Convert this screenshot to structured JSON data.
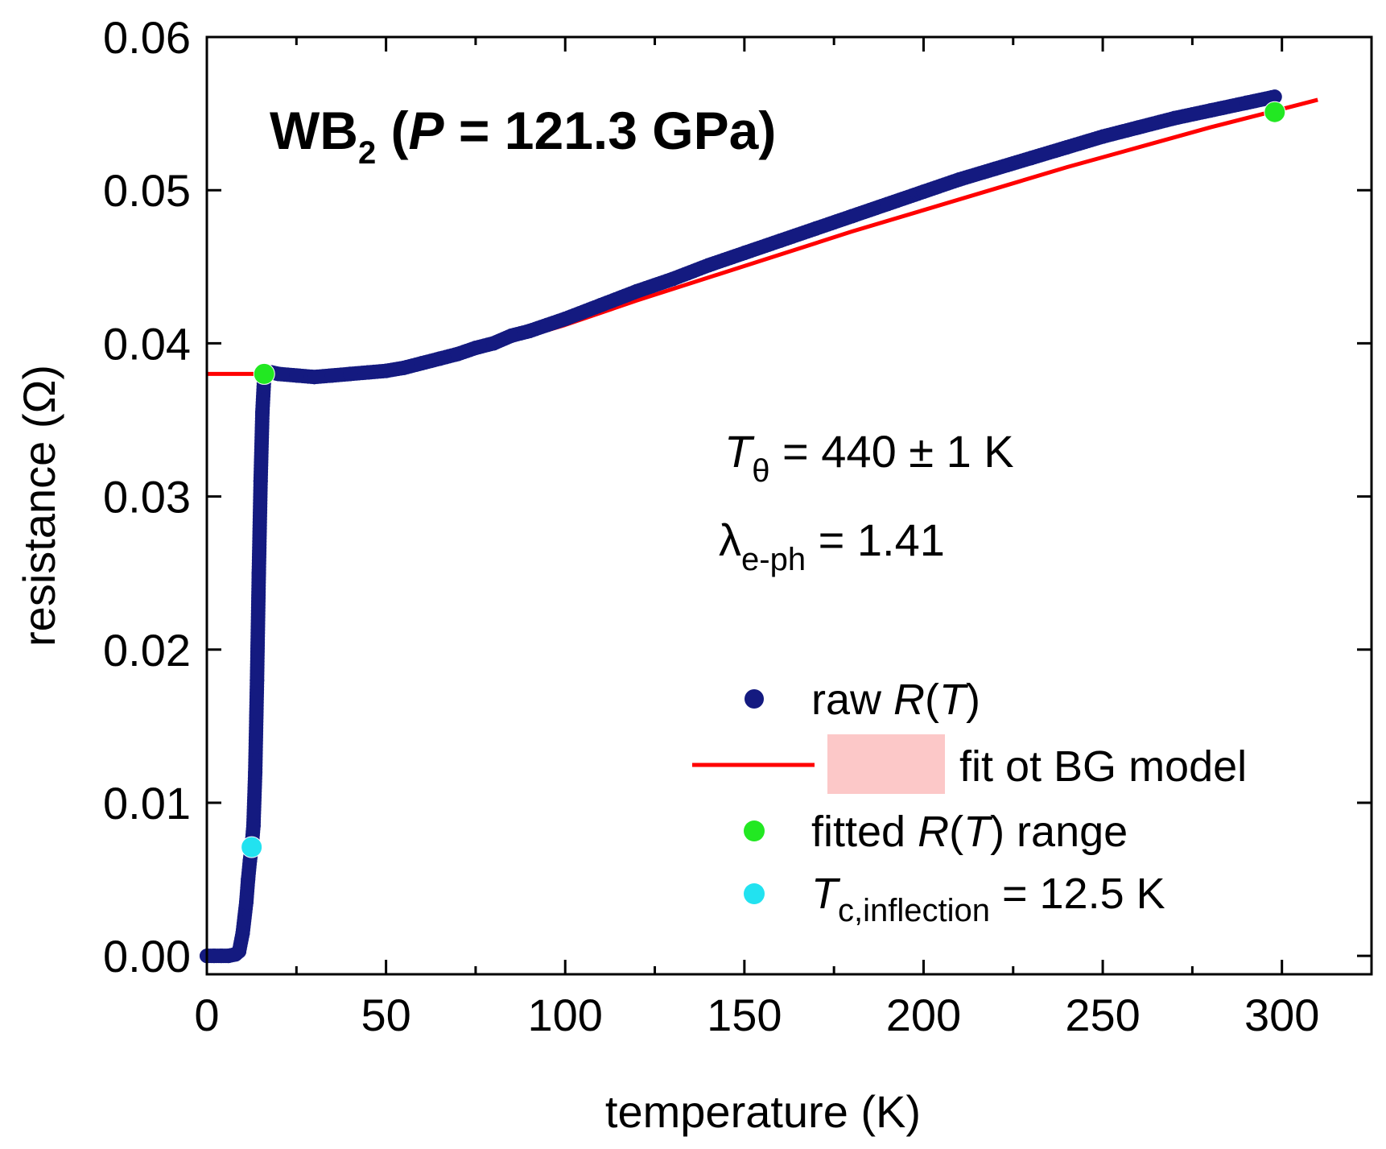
{
  "chart_data": {
    "type": "scatter",
    "title": {
      "main": "WB",
      "sub": "2",
      "open": " (",
      "pvar": "P",
      "rest": " = 121.3 GPa)"
    },
    "xlabel": "temperature (K)",
    "ylabel": "resistance (Ω)",
    "xlim": [
      0,
      325
    ],
    "ylim": [
      -0.0012,
      0.06
    ],
    "xticks": [
      0,
      50,
      100,
      150,
      200,
      250,
      300
    ],
    "yticks": [
      0.0,
      0.01,
      0.02,
      0.03,
      0.04,
      0.05,
      0.06
    ],
    "xtick_labels": [
      "0",
      "50",
      "100",
      "150",
      "200",
      "250",
      "300"
    ],
    "ytick_labels": [
      "0.00",
      "0.01",
      "0.02",
      "0.03",
      "0.04",
      "0.05",
      "0.06"
    ],
    "annotations": {
      "ttheta_sym": "T",
      "ttheta_sub": "θ",
      "ttheta_val": " = 440 ± 1 K",
      "lambda_sym": "λ",
      "lambda_sub": "e-ph",
      "lambda_val": " = 1.41"
    },
    "legend": {
      "position": "bottom-right",
      "raw": {
        "pre": "raw ",
        "r": "R",
        "open": "(",
        "t": "T",
        "close": ")"
      },
      "fit": {
        "text": "fit ot BG model"
      },
      "range": {
        "pre": "fitted ",
        "r": "R",
        "open": "(",
        "t": "T",
        "close": ") range"
      },
      "tc": {
        "t": "T",
        "sub": "c,inflection",
        "val": " = 12.5 K"
      }
    },
    "series": [
      {
        "name": "raw R(T)",
        "kind": "scatter",
        "color": "#141a80",
        "x": [
          0,
          2,
          4,
          6,
          8,
          9,
          10,
          11,
          11.5,
          12,
          12.5,
          13,
          13.5,
          14,
          14.5,
          15,
          15.5,
          16,
          18,
          20,
          25,
          30,
          35,
          40,
          45,
          50,
          55,
          60,
          65,
          70,
          75,
          80,
          85,
          90,
          95,
          100,
          110,
          120,
          130,
          140,
          150,
          160,
          170,
          180,
          190,
          200,
          210,
          220,
          230,
          240,
          250,
          260,
          270,
          280,
          290,
          298
        ],
        "y": [
          0.0,
          0.0,
          0.0,
          0.0,
          0.0001,
          0.0003,
          0.0015,
          0.0035,
          0.005,
          0.0062,
          0.0071,
          0.0085,
          0.012,
          0.018,
          0.025,
          0.031,
          0.0355,
          0.0378,
          0.0381,
          0.038,
          0.0379,
          0.0378,
          0.0379,
          0.038,
          0.0381,
          0.0382,
          0.0384,
          0.0387,
          0.039,
          0.0393,
          0.0397,
          0.04,
          0.0405,
          0.0408,
          0.0412,
          0.0416,
          0.0425,
          0.0434,
          0.0442,
          0.0451,
          0.0459,
          0.0467,
          0.0475,
          0.0483,
          0.0491,
          0.0499,
          0.0507,
          0.0514,
          0.0521,
          0.0528,
          0.0535,
          0.0541,
          0.0547,
          0.0552,
          0.0557,
          0.0561
        ]
      },
      {
        "name": "fit ot BG model",
        "kind": "line",
        "color": "#ff0000",
        "x": [
          0,
          5,
          10,
          16,
          20,
          30,
          40,
          50,
          60,
          70,
          80,
          90,
          100,
          120,
          140,
          160,
          180,
          200,
          220,
          240,
          260,
          280,
          300,
          310
        ],
        "y": [
          0.038,
          0.038,
          0.038,
          0.038,
          0.038,
          0.0379,
          0.038,
          0.0381,
          0.0386,
          0.0392,
          0.0398,
          0.0405,
          0.0412,
          0.0428,
          0.0443,
          0.0458,
          0.0473,
          0.0487,
          0.0501,
          0.0515,
          0.0528,
          0.0541,
          0.0553,
          0.0559
        ]
      },
      {
        "name": "fitted R(T) range",
        "kind": "marker",
        "color": "#22e822",
        "x": [
          16,
          298
        ],
        "y": [
          0.038,
          0.0551
        ]
      },
      {
        "name": "Tc,inflection = 12.5 K",
        "kind": "marker",
        "color": "#22e2f0",
        "x": [
          12.5
        ],
        "y": [
          0.0071
        ]
      }
    ]
  }
}
